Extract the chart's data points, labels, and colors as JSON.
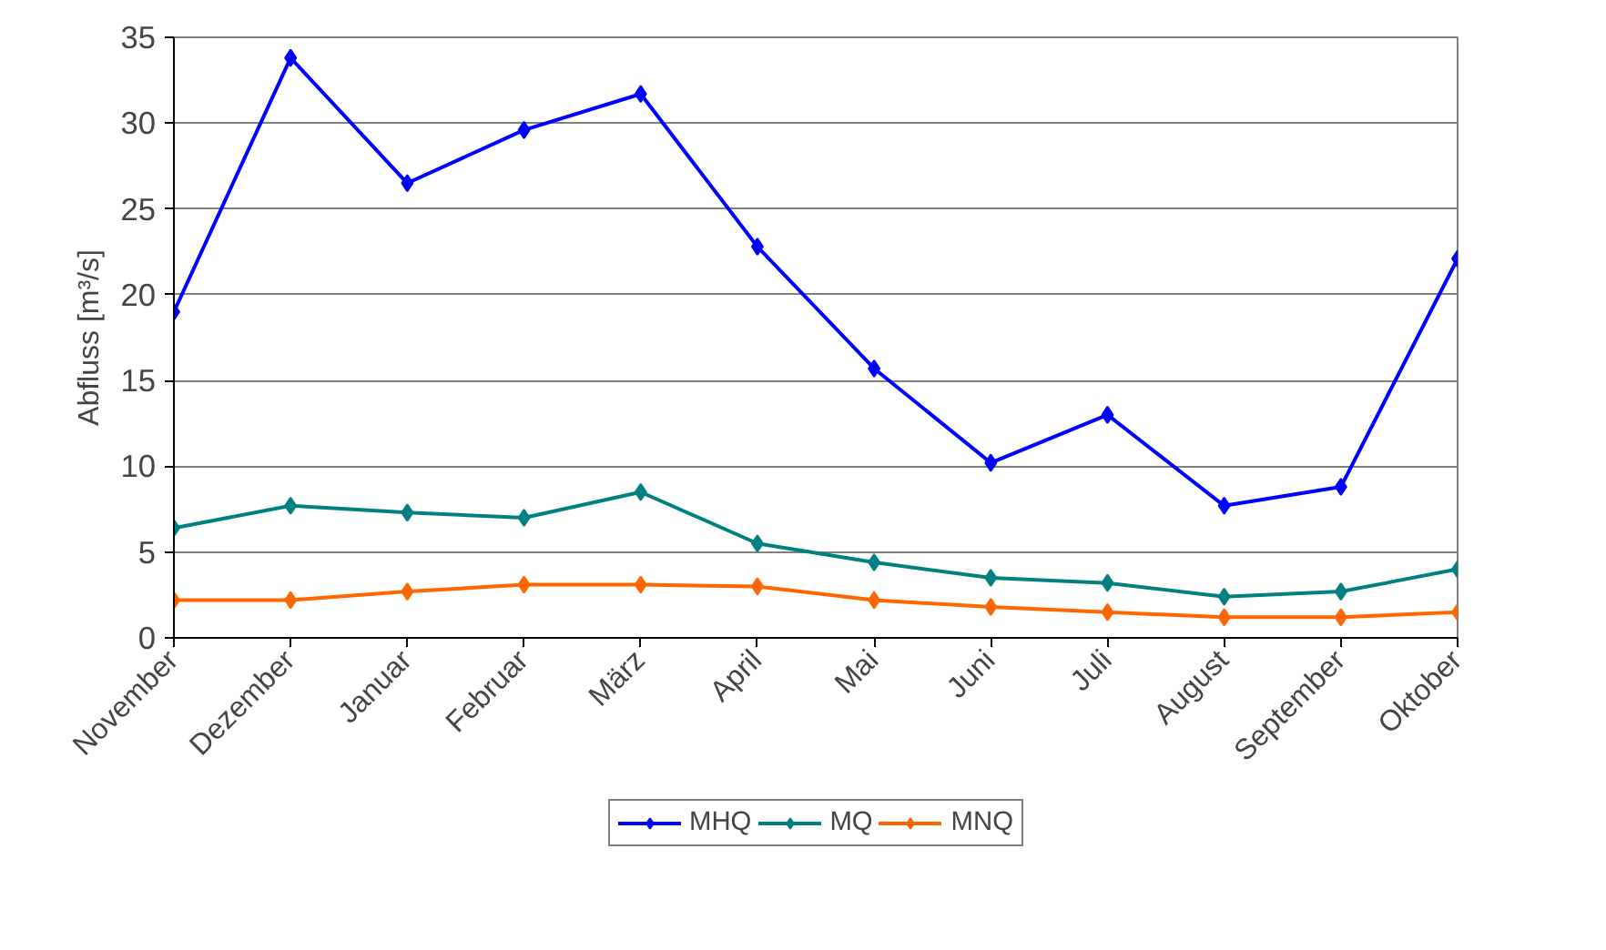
{
  "chart_data": {
    "type": "line",
    "ylabel": "Abfluss [m³/s]",
    "categories": [
      "November",
      "Dezember",
      "Januar",
      "Februar",
      "März",
      "April",
      "Mai",
      "Juni",
      "Juli",
      "August",
      "September",
      "Oktober"
    ],
    "series": [
      {
        "name": "MHQ",
        "color": "#0000ff",
        "values": [
          19.0,
          33.8,
          26.5,
          29.6,
          31.7,
          22.8,
          15.7,
          10.2,
          13.0,
          7.7,
          8.8,
          22.1
        ]
      },
      {
        "name": "MQ",
        "color": "#008080",
        "values": [
          6.4,
          7.7,
          7.3,
          7.0,
          8.5,
          5.5,
          4.4,
          3.5,
          3.2,
          2.4,
          2.7,
          4.0
        ]
      },
      {
        "name": "MNQ",
        "color": "#ff6600",
        "values": [
          2.2,
          2.2,
          2.7,
          3.1,
          3.1,
          3.0,
          2.2,
          1.8,
          1.5,
          1.2,
          1.2,
          1.5
        ]
      }
    ],
    "ylim": [
      0,
      35
    ],
    "yticks": [
      0,
      5,
      10,
      15,
      20,
      25,
      30,
      35
    ],
    "grid": "y",
    "legend": "bottom",
    "marker": "diamond",
    "line_style": "solid"
  }
}
